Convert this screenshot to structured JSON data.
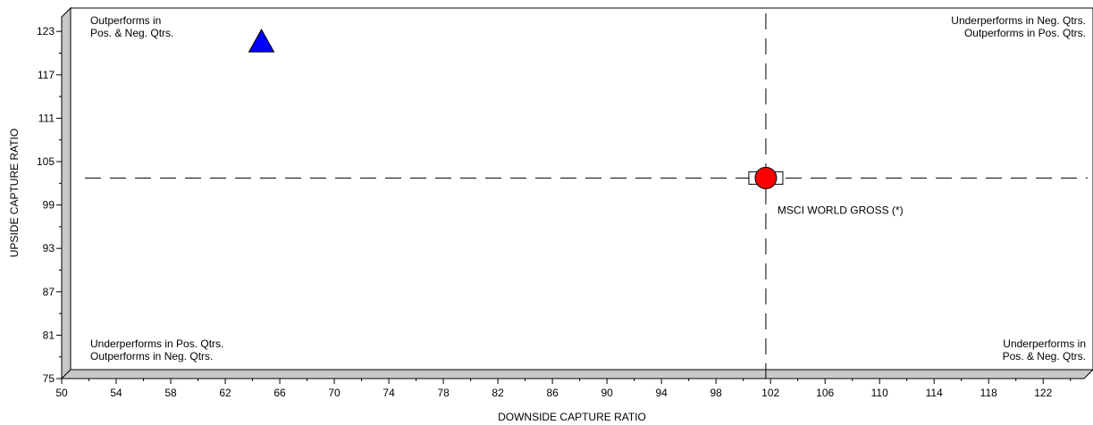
{
  "chart_data": {
    "type": "scatter",
    "xlabel": "DOWNSIDE CAPTURE RATIO",
    "ylabel": "UPSIDE CAPTURE RATIO",
    "xlim": [
      50,
      125
    ],
    "ylim": [
      75,
      125
    ],
    "xticks": [
      50,
      54,
      58,
      62,
      66,
      70,
      74,
      78,
      82,
      86,
      90,
      94,
      98,
      102,
      106,
      110,
      114,
      118,
      122
    ],
    "yticks": [
      75,
      81,
      87,
      93,
      99,
      105,
      111,
      117,
      123
    ],
    "reference_lines": {
      "x": 101,
      "y": 101.5
    },
    "quadrant_labels": {
      "top_left": [
        "Outperforms in",
        "Pos. & Neg. Qtrs."
      ],
      "top_right": [
        "Underperforms in Neg. Qtrs.",
        "Outperforms in Pos. Qtrs."
      ],
      "bottom_left": [
        "Underperforms in Pos. Qtrs.",
        "Outperforms in Neg. Qtrs."
      ],
      "bottom_right": [
        "Underperforms in",
        "Pos. & Neg. Qtrs."
      ]
    },
    "points": [
      {
        "x": 64,
        "y": 120.3,
        "marker": "triangle",
        "color": "#0000ff"
      },
      {
        "x": 101,
        "y": 101.5,
        "marker": "circle",
        "color": "#ff0000",
        "label": "MSCI WORLD GROSS (*)"
      },
      {
        "x": 101,
        "y": 101.5,
        "marker": "square",
        "color": "#ffffff"
      }
    ],
    "grid": false
  }
}
